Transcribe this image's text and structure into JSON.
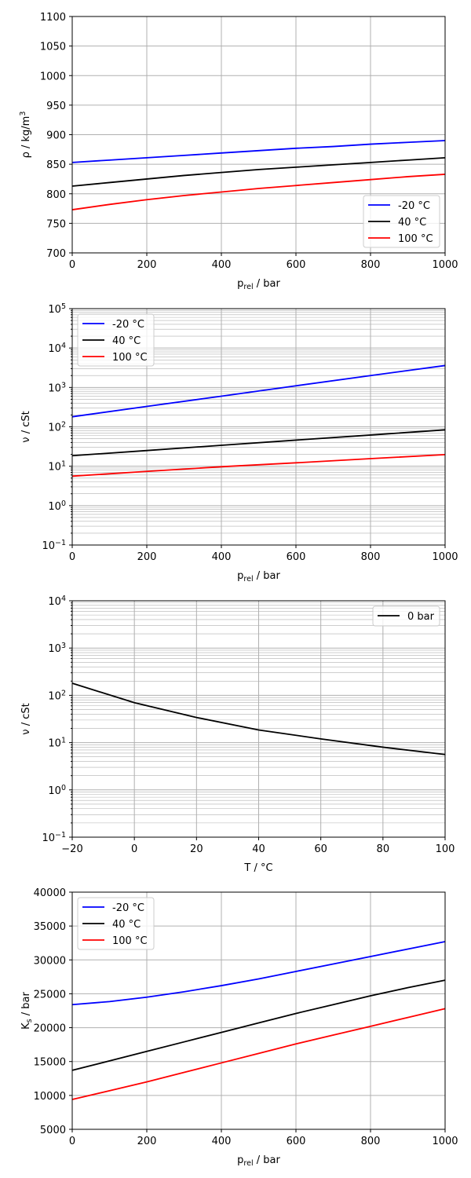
{
  "chart_data": [
    {
      "type": "line",
      "xlabel": "p_rel / bar",
      "ylabel": "ρ / kg/m^3",
      "xscale": "linear",
      "yscale": "linear",
      "xlim": [
        0,
        1000
      ],
      "ylim": [
        700,
        1100
      ],
      "xticks": [
        0,
        200,
        400,
        600,
        800,
        1000
      ],
      "xtick_labels": [
        "0",
        "200",
        "400",
        "600",
        "800",
        "1000"
      ],
      "yticks": [
        700,
        750,
        800,
        850,
        900,
        950,
        1000,
        1050,
        1100
      ],
      "ytick_labels": [
        "700",
        "750",
        "800",
        "850",
        "900",
        "950",
        "1000",
        "1050",
        "1100"
      ],
      "grid": true,
      "legend_position": "lower-right",
      "series": [
        {
          "name": "-20 °C",
          "color": "#0000ff",
          "x": [
            0,
            100,
            200,
            300,
            400,
            500,
            600,
            700,
            800,
            900,
            1000
          ],
          "y": [
            853,
            857,
            861,
            865,
            869,
            873,
            877,
            880,
            884,
            887,
            890
          ]
        },
        {
          "name": "40 °C",
          "color": "#000000",
          "x": [
            0,
            100,
            200,
            300,
            400,
            500,
            600,
            700,
            800,
            900,
            1000
          ],
          "y": [
            813,
            819,
            825,
            831,
            836,
            841,
            845,
            849,
            853,
            857,
            861
          ]
        },
        {
          "name": "100 °C",
          "color": "#ff0000",
          "x": [
            0,
            100,
            200,
            300,
            400,
            500,
            600,
            700,
            800,
            900,
            1000
          ],
          "y": [
            773,
            782,
            790,
            797,
            803,
            809,
            814,
            819,
            824,
            829,
            833
          ]
        }
      ]
    },
    {
      "type": "line",
      "xlabel": "p_rel / bar",
      "ylabel": "ν / cSt",
      "xscale": "linear",
      "yscale": "log",
      "xlim": [
        0,
        1000
      ],
      "ylim": [
        0.1,
        100000
      ],
      "xticks": [
        0,
        200,
        400,
        600,
        800,
        1000
      ],
      "xtick_labels": [
        "0",
        "200",
        "400",
        "600",
        "800",
        "1000"
      ],
      "yticks": [
        0.1,
        1,
        10,
        100,
        1000,
        10000,
        100000
      ],
      "ytick_labels": [
        "10^-1",
        "10^0",
        "10^1",
        "10^2",
        "10^3",
        "10^4",
        "10^5"
      ],
      "grid": true,
      "legend_position": "upper-left",
      "series": [
        {
          "name": "-20 °C",
          "color": "#0000ff",
          "x": [
            0,
            200,
            400,
            600,
            800,
            1000
          ],
          "y": [
            180,
            330,
            600,
            1100,
            2000,
            3600
          ]
        },
        {
          "name": "40 °C",
          "color": "#000000",
          "x": [
            0,
            200,
            400,
            600,
            800,
            1000
          ],
          "y": [
            18.5,
            25,
            34,
            46,
            62,
            84
          ]
        },
        {
          "name": "100 °C",
          "color": "#ff0000",
          "x": [
            0,
            200,
            400,
            600,
            800,
            1000
          ],
          "y": [
            5.6,
            7.4,
            9.7,
            12.2,
            15.6,
            19.7
          ]
        }
      ]
    },
    {
      "type": "line",
      "xlabel": "T / °C",
      "ylabel": "ν / cSt",
      "xscale": "linear",
      "yscale": "log",
      "xlim": [
        -20,
        100
      ],
      "ylim": [
        0.1,
        10000
      ],
      "xticks": [
        -20,
        0,
        20,
        40,
        60,
        80,
        100
      ],
      "xtick_labels": [
        "−20",
        "0",
        "20",
        "40",
        "60",
        "80",
        "100"
      ],
      "yticks": [
        0.1,
        1,
        10,
        100,
        1000,
        10000
      ],
      "ytick_labels": [
        "10^-1",
        "10^0",
        "10^1",
        "10^2",
        "10^3",
        "10^4"
      ],
      "grid": true,
      "legend_position": "upper-right",
      "series": [
        {
          "name": "0 bar",
          "color": "#000000",
          "x": [
            -20,
            0,
            20,
            40,
            60,
            80,
            100
          ],
          "y": [
            180,
            70,
            34,
            18.5,
            12,
            8,
            5.6
          ]
        }
      ]
    },
    {
      "type": "line",
      "xlabel": "p_rel / bar",
      "ylabel": "K_s / bar",
      "xscale": "linear",
      "yscale": "linear",
      "xlim": [
        0,
        1000
      ],
      "ylim": [
        5000,
        40000
      ],
      "xticks": [
        0,
        200,
        400,
        600,
        800,
        1000
      ],
      "xtick_labels": [
        "0",
        "200",
        "400",
        "600",
        "800",
        "1000"
      ],
      "yticks": [
        5000,
        10000,
        15000,
        20000,
        25000,
        30000,
        35000,
        40000
      ],
      "ytick_labels": [
        "5000",
        "10000",
        "15000",
        "20000",
        "25000",
        "30000",
        "35000",
        "40000"
      ],
      "grid": true,
      "legend_position": "upper-left",
      "series": [
        {
          "name": "-20 °C",
          "color": "#0000ff",
          "x": [
            0,
            100,
            200,
            300,
            400,
            500,
            600,
            700,
            800,
            900,
            1000
          ],
          "y": [
            23400,
            23850,
            24500,
            25300,
            26200,
            27200,
            28300,
            29400,
            30500,
            31600,
            32700
          ]
        },
        {
          "name": "40 °C",
          "color": "#000000",
          "x": [
            0,
            100,
            200,
            300,
            400,
            500,
            600,
            700,
            800,
            900,
            1000
          ],
          "y": [
            13700,
            15100,
            16500,
            17900,
            19300,
            20700,
            22100,
            23400,
            24700,
            25900,
            27000
          ]
        },
        {
          "name": "100 °C",
          "color": "#ff0000",
          "x": [
            0,
            100,
            200,
            300,
            400,
            500,
            600,
            700,
            800,
            900,
            1000
          ],
          "y": [
            9400,
            10700,
            12000,
            13400,
            14800,
            16200,
            17600,
            18900,
            20200,
            21500,
            22800
          ]
        }
      ]
    }
  ]
}
